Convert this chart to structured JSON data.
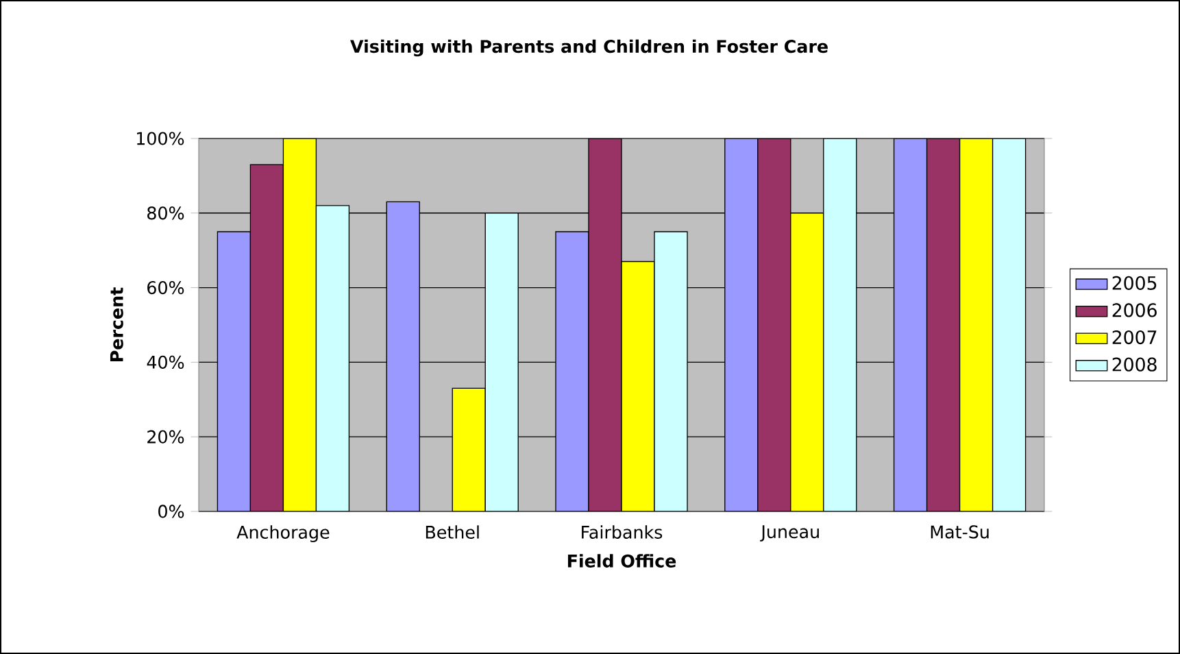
{
  "chart_data": {
    "type": "bar",
    "title": "Visiting with Parents and Children in Foster Care",
    "xlabel": "Field Office",
    "ylabel": "Percent",
    "categories": [
      "Anchorage",
      "Bethel",
      "Fairbanks",
      "Juneau",
      "Mat-Su"
    ],
    "series": [
      {
        "name": "2005",
        "color": "#9999ff",
        "values": [
          75,
          83,
          75,
          100,
          100
        ]
      },
      {
        "name": "2006",
        "color": "#993366",
        "values": [
          93,
          null,
          100,
          100,
          100
        ]
      },
      {
        "name": "2007",
        "color": "#ffff00",
        "values": [
          100,
          33,
          67,
          80,
          100
        ]
      },
      {
        "name": "2008",
        "color": "#ccffff",
        "values": [
          82,
          80,
          75,
          100,
          100
        ]
      }
    ],
    "ylim": [
      0,
      100
    ],
    "yticks": [
      {
        "value": 0,
        "label": "0%"
      },
      {
        "value": 20,
        "label": "20%"
      },
      {
        "value": 40,
        "label": "40%"
      },
      {
        "value": 60,
        "label": "60%"
      },
      {
        "value": 80,
        "label": "80%"
      },
      {
        "value": 100,
        "label": "100%"
      }
    ],
    "grid": "y",
    "legend": "right"
  }
}
